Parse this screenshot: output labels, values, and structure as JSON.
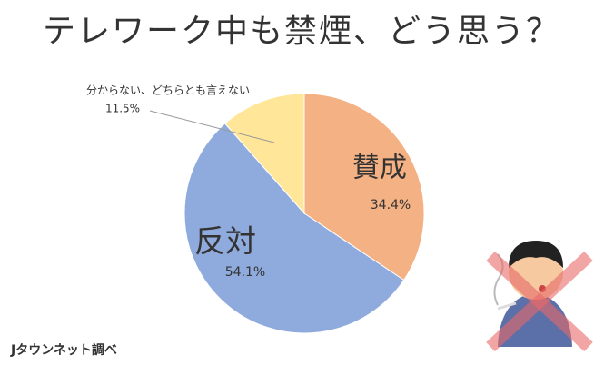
{
  "chart_data": {
    "type": "pie",
    "title": "テレワーク中も禁煙、どう思う？",
    "categories": [
      "賛成",
      "反対",
      "分からない、どちらとも言えない"
    ],
    "values": [
      34.4,
      54.1,
      11.5
    ],
    "value_labels": [
      "34.4%",
      "54.1%",
      "11.5%"
    ],
    "colors": [
      "#f4b183",
      "#8faadc",
      "#ffe699"
    ],
    "source": "Jタウンネット調べ"
  }
}
